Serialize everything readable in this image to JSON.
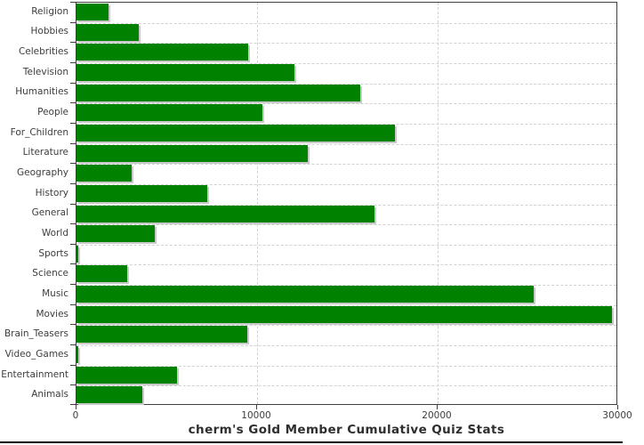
{
  "chart_data": {
    "type": "bar",
    "orientation": "horizontal",
    "title": "cherm's Gold Member Cumulative Quiz Stats",
    "categories": [
      "Religion",
      "Hobbies",
      "Celebrities",
      "Television",
      "Humanities",
      "People",
      "For_Children",
      "Literature",
      "Geography",
      "History",
      "General",
      "World",
      "Sports",
      "Science",
      "Music",
      "Movies",
      "Brain_Teasers",
      "Video_Games",
      "Entertainment",
      "Animals"
    ],
    "values": [
      1750,
      3450,
      9500,
      12050,
      15700,
      10300,
      17650,
      12800,
      3050,
      7250,
      16500,
      4350,
      75,
      2800,
      25300,
      29650,
      9480,
      75,
      5550,
      3660
    ],
    "xlabel": "",
    "ylabel": "",
    "xlim": [
      0,
      30000
    ],
    "x_ticks": [
      0,
      10000,
      20000,
      30000
    ],
    "x_tick_labels": [
      "0",
      "10000",
      "20000",
      "30000"
    ],
    "grid": {
      "vertical": "dashed at 10000 and 20000",
      "horizontal": "dashed at category boundaries"
    },
    "legend": "none",
    "colors": {
      "bar": "#008200",
      "bar_shadow": "#c9c9c9",
      "gridline": "#d2d2d2",
      "axis": "#3f3f3f",
      "text": "#3d3d3d",
      "title_text": "#2e2e2e",
      "background": "#ffffff",
      "bottom_rule": "#000000"
    }
  }
}
